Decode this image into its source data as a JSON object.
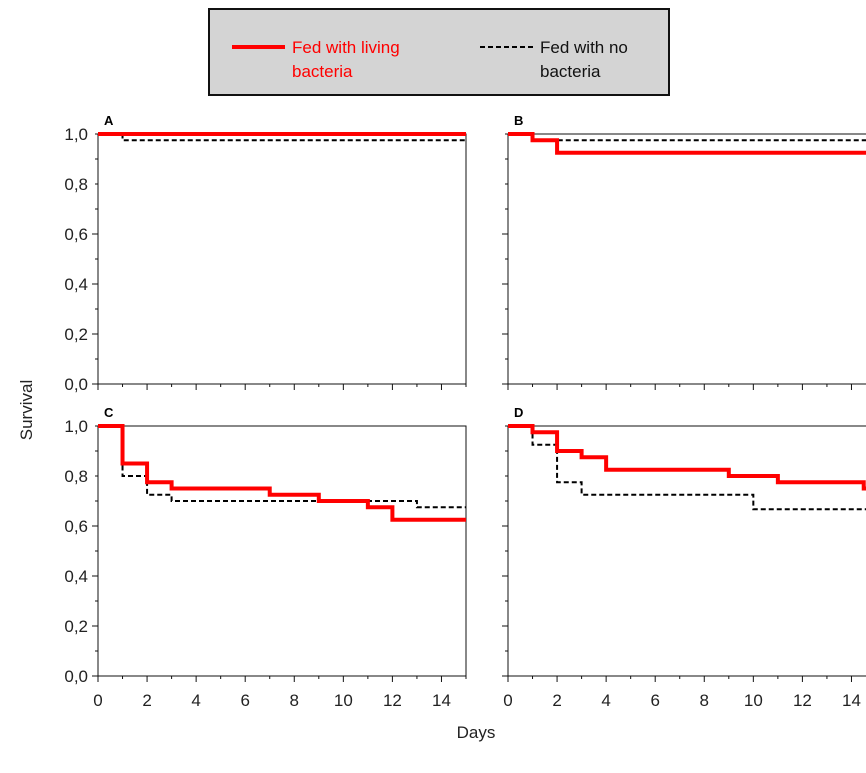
{
  "chart_data": {
    "type": "line",
    "step": true,
    "xlabel": "Days",
    "ylabel": "Survival",
    "xlim": [
      0,
      15
    ],
    "ylim": [
      0,
      1
    ],
    "xticks": [
      "0",
      "2",
      "4",
      "6",
      "8",
      "10",
      "12",
      "14"
    ],
    "yticks": [
      "0,0",
      "0,2",
      "0,4",
      "0,6",
      "0,8",
      "1,0"
    ],
    "legend": {
      "placement": "top-center",
      "background": "#d4d4d4",
      "entries": [
        {
          "label_line1": "Fed with living",
          "label_line2": "bacteria",
          "color": "#ff0000",
          "style": "solid"
        },
        {
          "label_line1": "Fed with no",
          "label_line2": "bacteria",
          "color": "#000000",
          "style": "dashed"
        }
      ]
    },
    "panels": [
      {
        "letter": "A",
        "series": [
          {
            "name": "Fed with living bacteria",
            "color": "#ff0000",
            "style": "solid",
            "points": [
              [
                0,
                1.0
              ],
              [
                15,
                1.0
              ]
            ]
          },
          {
            "name": "Fed with no bacteria",
            "color": "#000000",
            "style": "dashed",
            "points": [
              [
                0,
                1.0
              ],
              [
                1,
                1.0
              ],
              [
                1,
                0.975
              ],
              [
                15,
                0.975
              ]
            ]
          }
        ]
      },
      {
        "letter": "B",
        "series": [
          {
            "name": "Fed with living bacteria",
            "color": "#ff0000",
            "style": "solid",
            "points": [
              [
                0,
                1.0
              ],
              [
                1,
                1.0
              ],
              [
                1,
                0.975
              ],
              [
                2,
                0.975
              ],
              [
                2,
                0.925
              ],
              [
                15,
                0.925
              ]
            ]
          },
          {
            "name": "Fed with no bacteria",
            "color": "#000000",
            "style": "dashed",
            "points": [
              [
                0,
                1.0
              ],
              [
                1,
                1.0
              ],
              [
                1,
                0.975
              ],
              [
                15,
                0.975
              ]
            ]
          }
        ]
      },
      {
        "letter": "C",
        "series": [
          {
            "name": "Fed with living bacteria",
            "color": "#ff0000",
            "style": "solid",
            "points": [
              [
                0,
                1.0
              ],
              [
                1,
                1.0
              ],
              [
                1,
                0.85
              ],
              [
                2,
                0.85
              ],
              [
                2,
                0.775
              ],
              [
                3,
                0.775
              ],
              [
                3,
                0.75
              ],
              [
                7,
                0.75
              ],
              [
                7,
                0.725
              ],
              [
                9,
                0.725
              ],
              [
                9,
                0.7
              ],
              [
                11,
                0.7
              ],
              [
                11,
                0.675
              ],
              [
                12,
                0.675
              ],
              [
                12,
                0.625
              ],
              [
                15,
                0.625
              ]
            ]
          },
          {
            "name": "Fed with no bacteria",
            "color": "#000000",
            "style": "dashed",
            "points": [
              [
                0,
                1.0
              ],
              [
                1,
                1.0
              ],
              [
                1,
                0.8
              ],
              [
                2,
                0.8
              ],
              [
                2,
                0.725
              ],
              [
                3,
                0.725
              ],
              [
                3,
                0.7
              ],
              [
                13,
                0.7
              ],
              [
                13,
                0.675
              ],
              [
                15,
                0.675
              ]
            ]
          }
        ]
      },
      {
        "letter": "D",
        "series": [
          {
            "name": "Fed with living bacteria",
            "color": "#ff0000",
            "style": "solid",
            "points": [
              [
                0,
                1.0
              ],
              [
                1,
                1.0
              ],
              [
                1,
                0.975
              ],
              [
                2,
                0.975
              ],
              [
                2,
                0.9
              ],
              [
                3,
                0.9
              ],
              [
                3,
                0.875
              ],
              [
                4,
                0.875
              ],
              [
                4,
                0.825
              ],
              [
                9,
                0.825
              ],
              [
                9,
                0.8
              ],
              [
                11,
                0.8
              ],
              [
                11,
                0.775
              ],
              [
                14.5,
                0.775
              ],
              [
                14.5,
                0.75
              ],
              [
                15,
                0.75
              ]
            ]
          },
          {
            "name": "Fed with no bacteria",
            "color": "#000000",
            "style": "dashed",
            "points": [
              [
                0,
                1.0
              ],
              [
                1,
                1.0
              ],
              [
                1,
                0.925
              ],
              [
                2,
                0.925
              ],
              [
                2,
                0.775
              ],
              [
                3,
                0.775
              ],
              [
                3,
                0.725
              ],
              [
                10,
                0.725
              ],
              [
                10,
                0.667
              ],
              [
                15,
                0.667
              ]
            ]
          }
        ]
      }
    ]
  }
}
